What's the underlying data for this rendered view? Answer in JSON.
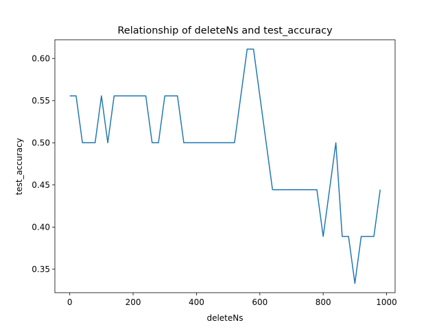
{
  "chart_data": {
    "type": "line",
    "title": "Relationship of deleteNs and test_accuracy",
    "xlabel": "deleteNs",
    "ylabel": "test_accuracy",
    "xlim": [
      -47,
      1027
    ],
    "ylim": [
      0.3222,
      0.6222
    ],
    "xticks": [
      0,
      200,
      400,
      600,
      800,
      1000
    ],
    "xtick_labels": [
      "0",
      "200",
      "400",
      "600",
      "800",
      "1000"
    ],
    "yticks": [
      0.35,
      0.4,
      0.45,
      0.5,
      0.55,
      0.6
    ],
    "ytick_labels": [
      "0.35",
      "0.40",
      "0.45",
      "0.50",
      "0.55",
      "0.60"
    ],
    "grid": false,
    "color": "#1f77b4",
    "series": [
      {
        "x": [
          0,
          20,
          40,
          60,
          80,
          100,
          120,
          140,
          160,
          180,
          200,
          220,
          240,
          260,
          280,
          300,
          320,
          340,
          360,
          380,
          400,
          420,
          440,
          460,
          480,
          500,
          520,
          540,
          560,
          580,
          600,
          620,
          640,
          660,
          680,
          700,
          720,
          740,
          760,
          780,
          800,
          820,
          840,
          860,
          880,
          900,
          920,
          940,
          960,
          980
        ],
        "y": [
          0.5556,
          0.5556,
          0.5,
          0.5,
          0.5,
          0.5556,
          0.5,
          0.5556,
          0.5556,
          0.5556,
          0.5556,
          0.5556,
          0.5556,
          0.5,
          0.5,
          0.5556,
          0.5556,
          0.5556,
          0.5,
          0.5,
          0.5,
          0.5,
          0.5,
          0.5,
          0.5,
          0.5,
          0.5,
          0.5556,
          0.6111,
          0.6111,
          0.5556,
          0.5,
          0.4444,
          0.4444,
          0.4444,
          0.4444,
          0.4444,
          0.4444,
          0.4444,
          0.4444,
          0.3889,
          0.4444,
          0.5,
          0.3889,
          0.3889,
          0.3333,
          0.3889,
          0.3889,
          0.3889,
          0.4444
        ]
      }
    ]
  }
}
